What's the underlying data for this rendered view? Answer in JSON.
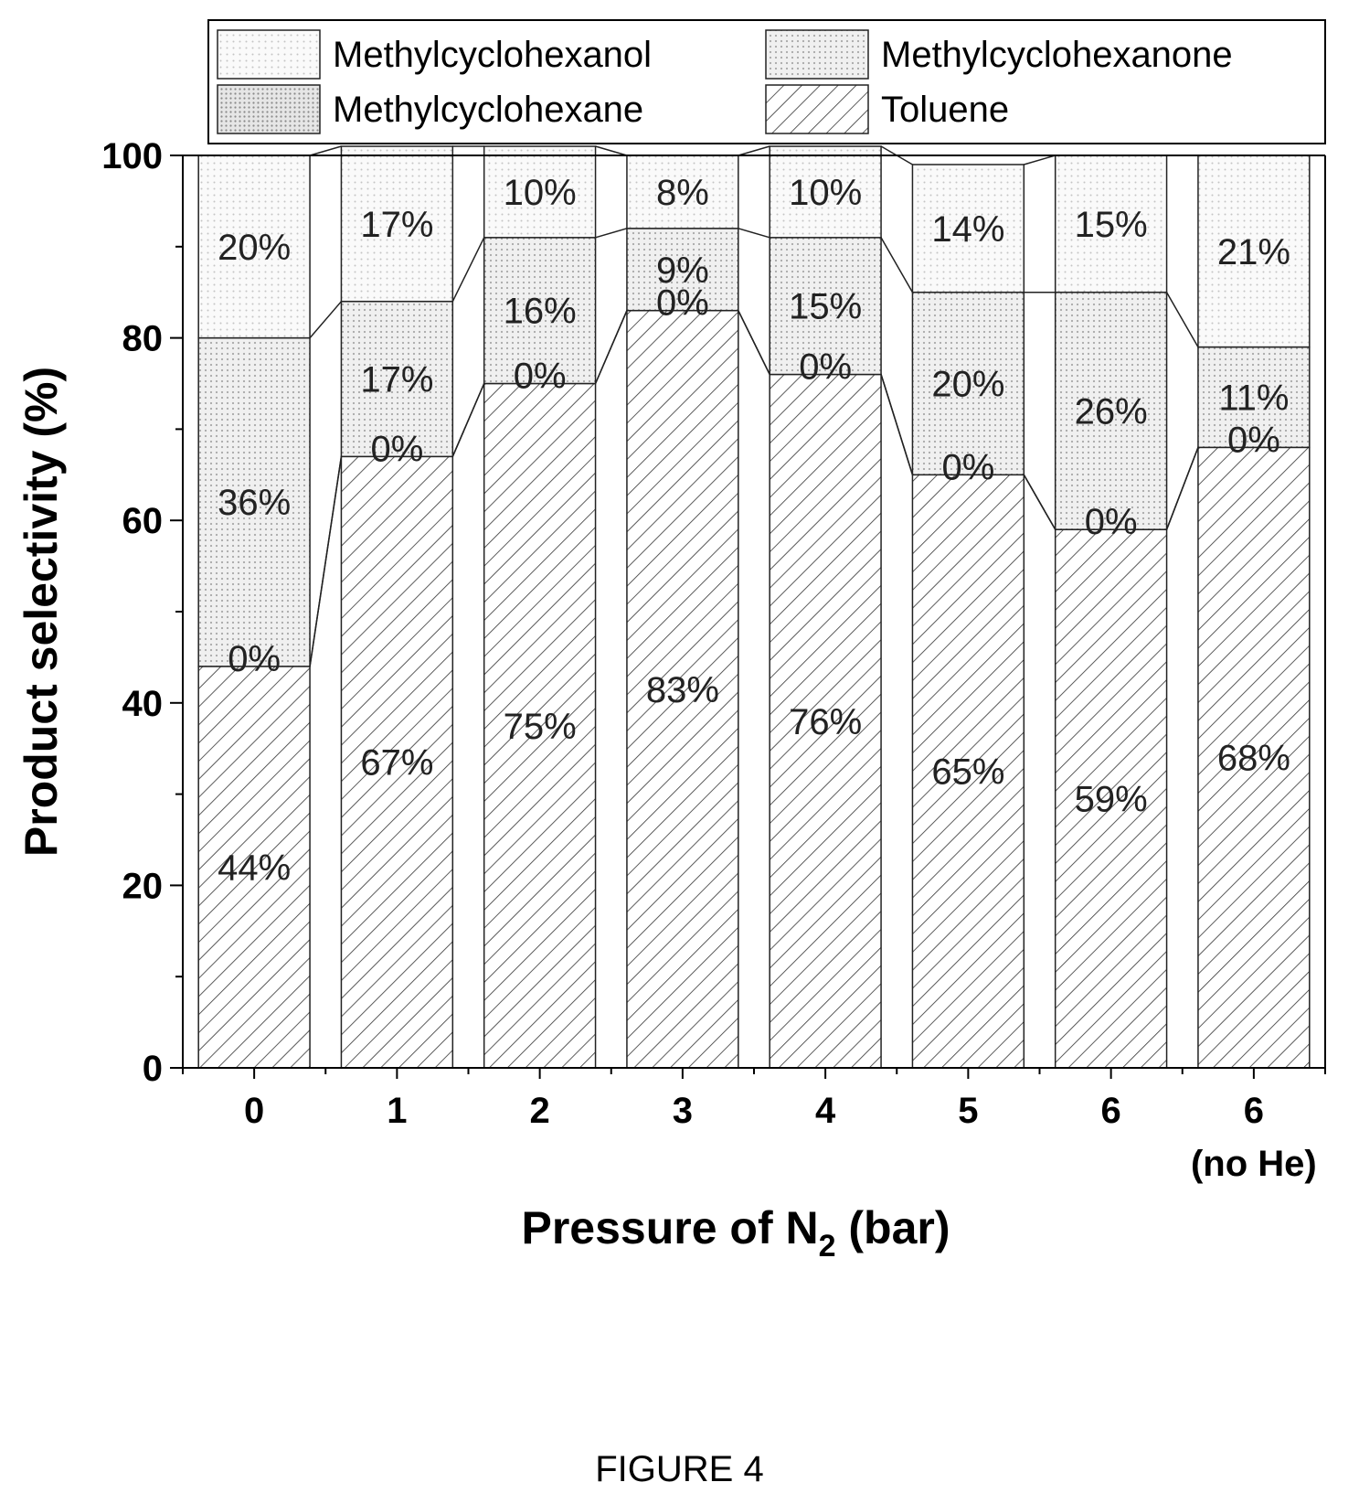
{
  "chart_data": {
    "type": "bar",
    "stacked": true,
    "categories": [
      "0",
      "1",
      "2",
      "3",
      "4",
      "5",
      "6",
      "6"
    ],
    "category_sublabels": [
      "",
      "",
      "",
      "",
      "",
      "",
      "",
      "(no He)"
    ],
    "series": [
      {
        "name": "Toluene",
        "values": [
          44,
          67,
          75,
          83,
          76,
          65,
          59,
          68
        ],
        "labels": [
          "44%",
          "67%",
          "75%",
          "83%",
          "76%",
          "65%",
          "59%",
          "68%"
        ]
      },
      {
        "name": "Methylcyclohexane",
        "values": [
          0,
          0,
          0,
          0,
          0,
          0,
          0,
          0
        ],
        "labels": [
          "0%",
          "0%",
          "0%",
          "0%",
          "0%",
          "0%",
          "0%",
          "0%"
        ]
      },
      {
        "name": "Methylcyclohexanone",
        "values": [
          36,
          17,
          16,
          9,
          15,
          20,
          26,
          11
        ],
        "labels": [
          "36%",
          "17%",
          "16%",
          "9%",
          "15%",
          "20%",
          "26%",
          "11%"
        ]
      },
      {
        "name": "Methylcyclohexanol",
        "values": [
          20,
          17,
          10,
          8,
          10,
          14,
          15,
          21
        ],
        "labels": [
          "20%",
          "17%",
          "10%",
          "8%",
          "10%",
          "14%",
          "15%",
          "21%"
        ]
      }
    ],
    "legend_order": [
      "Methylcyclohexanol",
      "Methylcyclohexanone",
      "Methylcyclohexane",
      "Toluene"
    ],
    "xlabel_main": "Pressure of N",
    "xlabel_sub": "2",
    "xlabel_tail": " (bar)",
    "ylabel": "Product selectivity (%)",
    "ylim": [
      0,
      100
    ],
    "yticks": [
      0,
      20,
      40,
      60,
      80,
      100
    ],
    "legend_position": "top",
    "grid": false
  },
  "caption": "FIGURE 4"
}
